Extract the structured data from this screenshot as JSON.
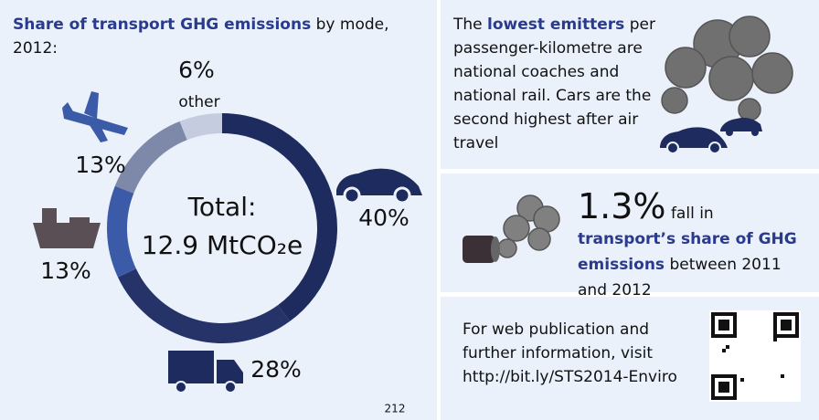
{
  "chart_data": {
    "type": "pie",
    "title_bold": "Share of transport GHG emissions",
    "title_rest": " by mode, 2012:",
    "center_label": "Total:",
    "center_value": "12.9 MtCO₂e",
    "categories": [
      null,
      null,
      null,
      null,
      "other"
    ],
    "values": [
      40,
      28,
      13,
      13,
      6
    ],
    "value_labels": [
      "40%",
      "28%",
      "13%",
      "13%",
      "6%"
    ],
    "colors": [
      "#1e2b5e",
      "#263369",
      "#3b5ba8",
      "#7e88a9",
      "#c6ccdf"
    ],
    "page_number": "212"
  },
  "panels": {
    "emitters": {
      "pre": "The ",
      "highlight": "lowest emitters",
      "post": " per passenger-kilometre are national coaches and national rail. Cars are the second highest after air travel"
    },
    "fall": {
      "big": "1.3%",
      "mid": " fall in ",
      "highlight": "transport’s share of GHG emissions",
      "post": " between 2011 and 2012"
    },
    "web": {
      "text": "For web publication and further information, visit http://bit.ly/STS2014-Enviro"
    }
  }
}
